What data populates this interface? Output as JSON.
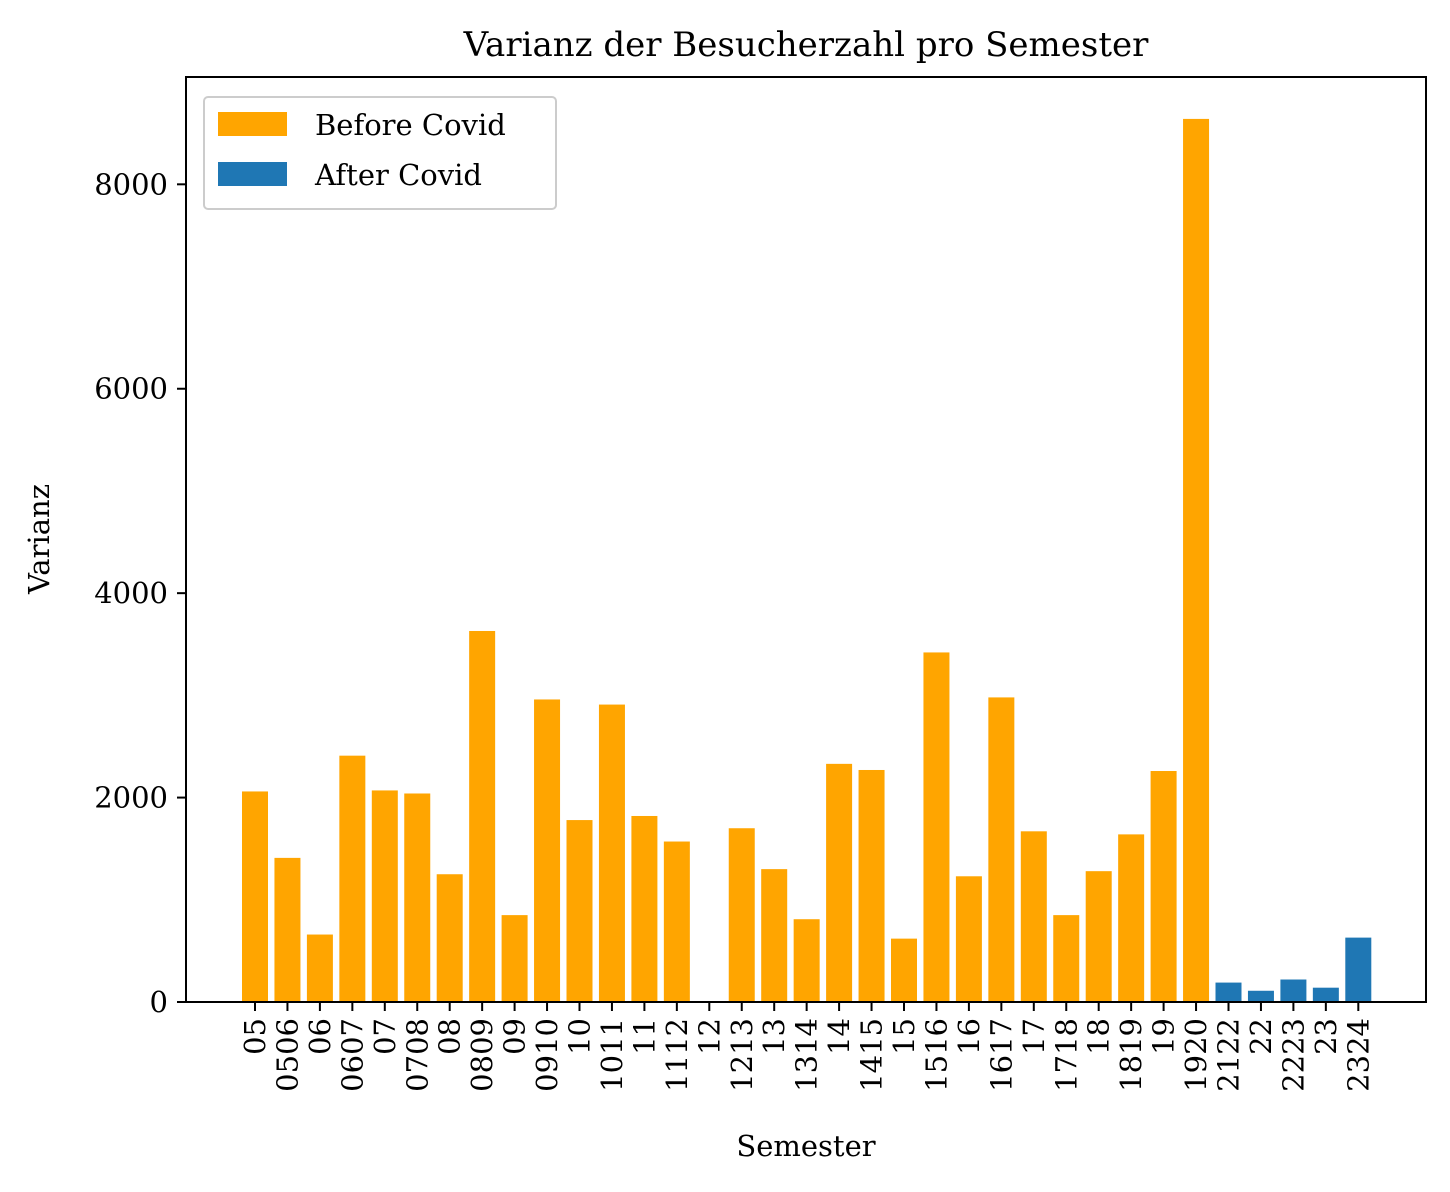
{
  "chart_data": {
    "type": "bar",
    "title": "Varianz der Besucherzahl pro Semester",
    "xlabel": "Semester",
    "ylabel": "Varianz",
    "ylim": [
      0,
      9050
    ],
    "yticks": [
      0,
      2000,
      4000,
      6000,
      8000
    ],
    "grid": false,
    "legend_position": "top-left",
    "categories": [
      "05",
      "0506",
      "06",
      "0607",
      "07",
      "0708",
      "08",
      "0809",
      "09",
      "0910",
      "10",
      "1011",
      "11",
      "1112",
      "12",
      "1213",
      "13",
      "1314",
      "14",
      "1415",
      "15",
      "1516",
      "16",
      "1617",
      "17",
      "1718",
      "18",
      "1819",
      "19",
      "1920",
      "2122",
      "22",
      "2223",
      "23",
      "2324"
    ],
    "series": [
      {
        "name": "Before Covid",
        "color": "#FFA500",
        "values": [
          2060,
          1410,
          660,
          2410,
          2070,
          2040,
          1250,
          3630,
          850,
          2960,
          1780,
          2910,
          1820,
          1570,
          0,
          1700,
          1300,
          810,
          2330,
          2270,
          620,
          3420,
          1230,
          2980,
          1670,
          850,
          1280,
          1640,
          2260,
          8640,
          null,
          null,
          null,
          null,
          null
        ]
      },
      {
        "name": "After Covid",
        "color": "#1F77B4",
        "values": [
          null,
          null,
          null,
          null,
          null,
          null,
          null,
          null,
          null,
          null,
          null,
          null,
          null,
          null,
          null,
          null,
          null,
          null,
          null,
          null,
          null,
          null,
          null,
          null,
          null,
          null,
          null,
          null,
          null,
          null,
          190,
          110,
          220,
          140,
          630
        ]
      }
    ]
  }
}
